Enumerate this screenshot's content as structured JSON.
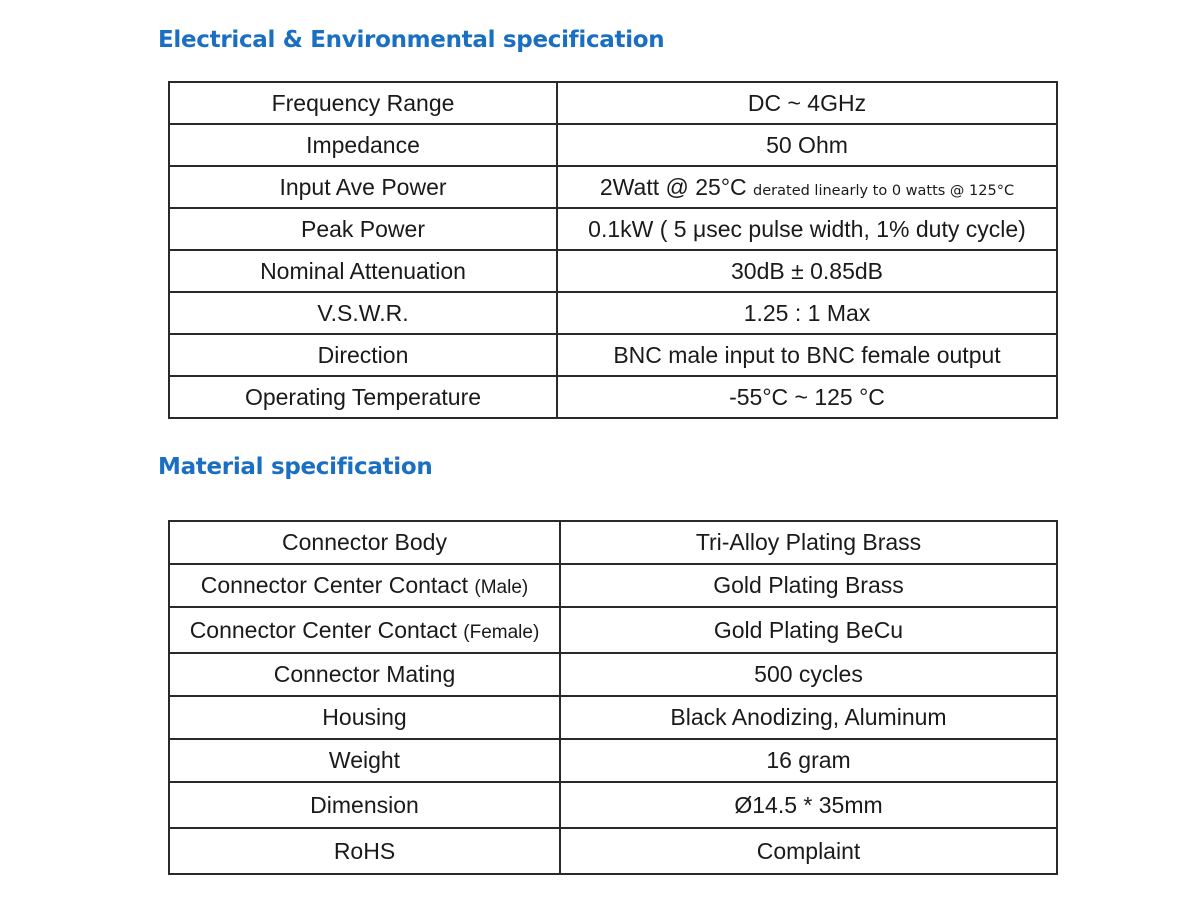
{
  "electrical": {
    "title": "Electrical & Environmental specification",
    "rows": [
      {
        "label": "Frequency Range",
        "value": "DC ~ 4GHz"
      },
      {
        "label": "Impedance",
        "value": "50 Ohm"
      },
      {
        "label": "Input Ave Power",
        "value": "2Watt @ 25°C",
        "note": "derated linearly to 0 watts @ 125°C"
      },
      {
        "label": "Peak Power",
        "value": "0.1kW ( 5 μsec pulse width, 1% duty cycle)"
      },
      {
        "label": "Nominal Attenuation",
        "value": "30dB ± 0.85dB"
      },
      {
        "label": "V.S.W.R.",
        "value": "1.25 : 1 Max"
      },
      {
        "label": "Direction",
        "value": "BNC male input to BNC female output"
      },
      {
        "label": "Operating Temperature",
        "value": "-55°C ~ 125 °C"
      }
    ]
  },
  "material": {
    "title": "Material specification",
    "rows": [
      {
        "label": "Connector Body",
        "value": "Tri-Alloy Plating Brass"
      },
      {
        "label": "Connector Center Contact",
        "label_suffix": "(Male)",
        "value": "Gold Plating Brass"
      },
      {
        "label": "Connector Center Contact",
        "label_suffix": "(Female)",
        "value": "Gold Plating BeCu"
      },
      {
        "label": "Connector Mating",
        "value": "500 cycles"
      },
      {
        "label": "Housing",
        "value": "Black Anodizing, Aluminum"
      },
      {
        "label": "Weight",
        "value": "16 gram"
      },
      {
        "label": "Dimension",
        "value": "Ø14.5 * 35mm"
      },
      {
        "label": "RoHS",
        "value": "Complaint"
      }
    ]
  }
}
